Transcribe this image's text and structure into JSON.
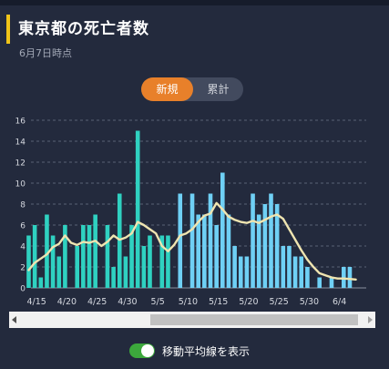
{
  "header": {
    "title": "東京都の死亡者数",
    "as_of": "6月7日時点"
  },
  "tabs": [
    {
      "label": "新規",
      "active": true
    },
    {
      "label": "累計",
      "active": false
    }
  ],
  "toggle": {
    "label": "移動平均線を表示",
    "on": true
  },
  "colors": {
    "accent": "#f0c419",
    "tab_active": "#e8802a",
    "bar_early": "#2fd1c1",
    "bar_late": "#6fd0f5",
    "average_line": "#efe4b0",
    "toggle_on": "#3ca83c"
  },
  "chart_data": {
    "type": "bar",
    "title": "",
    "xlabel": "",
    "ylabel": "",
    "ylim": [
      0,
      16
    ],
    "yticks": [
      0,
      2,
      4,
      6,
      8,
      10,
      12,
      14,
      16
    ],
    "grid": true,
    "categories": [
      "4/14",
      "4/15",
      "4/16",
      "4/17",
      "4/18",
      "4/19",
      "4/20",
      "4/21",
      "4/22",
      "4/23",
      "4/24",
      "4/25",
      "4/26",
      "4/27",
      "4/28",
      "4/29",
      "4/30",
      "5/1",
      "5/2",
      "5/3",
      "5/4",
      "5/5",
      "5/6",
      "5/7",
      "5/8",
      "5/9",
      "5/10",
      "5/11",
      "5/12",
      "5/13",
      "5/14",
      "5/15",
      "5/16",
      "5/17",
      "5/18",
      "5/19",
      "5/20",
      "5/21",
      "5/22",
      "5/23",
      "5/24",
      "5/25",
      "5/26",
      "5/27",
      "5/28",
      "5/29",
      "5/30",
      "5/31",
      "6/1",
      "6/2",
      "6/3",
      "6/4",
      "6/5",
      "6/6",
      "6/7"
    ],
    "x_tick_labels": [
      "4/15",
      "4/20",
      "4/25",
      "4/30",
      "5/5",
      "5/10",
      "5/15",
      "5/20",
      "5/25",
      "5/30",
      "6/4"
    ],
    "series": [
      {
        "role": "bar",
        "values": [
          5,
          6,
          1,
          7,
          5,
          3,
          6,
          0,
          4,
          6,
          6,
          7,
          0,
          6,
          2,
          9,
          3,
          6,
          15,
          4,
          5,
          0,
          5,
          5,
          0,
          9,
          0,
          9,
          7,
          7,
          9,
          6,
          11,
          7,
          4,
          3,
          3,
          9,
          7,
          8,
          9,
          8,
          4,
          4,
          3,
          3,
          2,
          0,
          1,
          0,
          1,
          0,
          2,
          2,
          0
        ],
        "color_split_category": "5/8"
      },
      {
        "role": "moving_average",
        "values": [
          1.7,
          2.4,
          2.8,
          3.2,
          3.9,
          4.2,
          5.0,
          4.3,
          4.1,
          4.4,
          4.3,
          4.5,
          4.0,
          4.4,
          5.0,
          4.6,
          4.8,
          5.2,
          6.3,
          6.0,
          5.6,
          5.2,
          4.0,
          3.5,
          4.1,
          5.0,
          5.2,
          5.6,
          6.3,
          6.9,
          7.1,
          8.1,
          7.5,
          6.8,
          6.5,
          6.3,
          6.2,
          6.4,
          6.2,
          6.5,
          6.8,
          7.0,
          6.6,
          5.6,
          4.6,
          3.6,
          2.7,
          2.0,
          1.4,
          1.2,
          1.0,
          0.9,
          0.9,
          0.85,
          0.8
        ]
      }
    ]
  }
}
